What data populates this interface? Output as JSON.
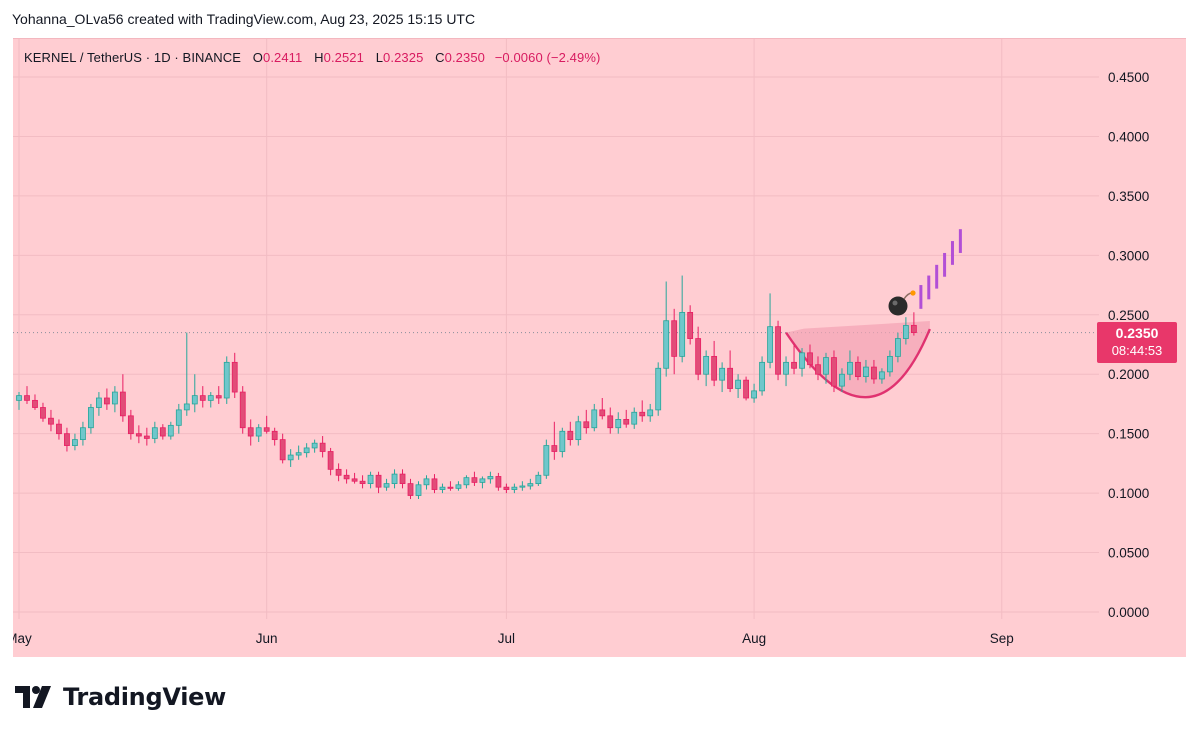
{
  "credit": "Yohanna_OLva56 created with TradingView.com, Aug 23, 2025 15:15 UTC",
  "brand": {
    "name": "TradingView",
    "logo_icon": "tradingview-logo-icon"
  },
  "colors": {
    "background": "#ffcdd2",
    "up": "#26a69a",
    "up_fill": "#6fc7cb",
    "down": "#e91e63",
    "down_fill": "#e14d78",
    "projection": "#b24fd6",
    "cup": "#e03270",
    "badge": "#e8376a"
  },
  "legend": {
    "symbol": "KERNEL / TetherUS · 1D · BINANCE",
    "o_label": "O",
    "o": "0.2411",
    "h_label": "H",
    "h": "0.2521",
    "l_label": "L",
    "l": "0.2325",
    "c_label": "C",
    "c": "0.2350",
    "change": "−0.0060 (−2.49%)"
  },
  "price_badge": {
    "price": "0.2350",
    "countdown": "08:44:53"
  },
  "annotation": {
    "icon": "bomb-icon"
  },
  "chart_data": {
    "type": "candlestick",
    "title": "KERNEL / TetherUS · 1D · BINANCE",
    "x_axis": {
      "ticks": [
        {
          "label": "May",
          "date": "2025-05-01"
        },
        {
          "label": "Jun",
          "date": "2025-06-01"
        },
        {
          "label": "Jul",
          "date": "2025-07-01"
        },
        {
          "label": "Aug",
          "date": "2025-08-01"
        },
        {
          "label": "Sep",
          "date": "2025-09-01"
        }
      ],
      "range": [
        "2025-05-01",
        "2025-09-13"
      ]
    },
    "y_axis": {
      "ticks": [
        "0.4500",
        "0.4000",
        "0.3500",
        "0.3000",
        "0.2500",
        "0.2000",
        "0.1500",
        "0.1000",
        "0.0500",
        "0.0000"
      ],
      "range": [
        0.0,
        0.48
      ],
      "position": "right"
    },
    "grid": true,
    "last_price": 0.235,
    "first_date": "2025-05-01",
    "candles": [
      [
        0.178,
        0.185,
        0.17,
        0.182
      ],
      [
        0.182,
        0.19,
        0.175,
        0.178
      ],
      [
        0.178,
        0.183,
        0.17,
        0.172
      ],
      [
        0.172,
        0.176,
        0.16,
        0.163
      ],
      [
        0.163,
        0.17,
        0.152,
        0.158
      ],
      [
        0.158,
        0.162,
        0.145,
        0.15
      ],
      [
        0.15,
        0.155,
        0.135,
        0.14
      ],
      [
        0.14,
        0.15,
        0.136,
        0.145
      ],
      [
        0.145,
        0.16,
        0.14,
        0.155
      ],
      [
        0.155,
        0.175,
        0.15,
        0.172
      ],
      [
        0.172,
        0.185,
        0.165,
        0.18
      ],
      [
        0.18,
        0.188,
        0.17,
        0.175
      ],
      [
        0.175,
        0.19,
        0.168,
        0.185
      ],
      [
        0.185,
        0.2,
        0.16,
        0.165
      ],
      [
        0.165,
        0.17,
        0.145,
        0.15
      ],
      [
        0.15,
        0.157,
        0.142,
        0.148
      ],
      [
        0.148,
        0.155,
        0.14,
        0.146
      ],
      [
        0.146,
        0.16,
        0.142,
        0.155
      ],
      [
        0.155,
        0.158,
        0.145,
        0.148
      ],
      [
        0.148,
        0.16,
        0.145,
        0.157
      ],
      [
        0.157,
        0.175,
        0.15,
        0.17
      ],
      [
        0.17,
        0.235,
        0.165,
        0.175
      ],
      [
        0.175,
        0.2,
        0.168,
        0.182
      ],
      [
        0.182,
        0.19,
        0.172,
        0.178
      ],
      [
        0.178,
        0.185,
        0.172,
        0.182
      ],
      [
        0.182,
        0.19,
        0.175,
        0.18
      ],
      [
        0.18,
        0.215,
        0.175,
        0.21
      ],
      [
        0.21,
        0.218,
        0.18,
        0.185
      ],
      [
        0.185,
        0.19,
        0.15,
        0.155
      ],
      [
        0.155,
        0.162,
        0.14,
        0.148
      ],
      [
        0.148,
        0.158,
        0.143,
        0.155
      ],
      [
        0.155,
        0.165,
        0.15,
        0.152
      ],
      [
        0.152,
        0.155,
        0.14,
        0.145
      ],
      [
        0.145,
        0.15,
        0.125,
        0.128
      ],
      [
        0.128,
        0.137,
        0.122,
        0.132
      ],
      [
        0.132,
        0.14,
        0.128,
        0.134
      ],
      [
        0.134,
        0.142,
        0.13,
        0.138
      ],
      [
        0.138,
        0.145,
        0.134,
        0.142
      ],
      [
        0.142,
        0.148,
        0.13,
        0.135
      ],
      [
        0.135,
        0.138,
        0.115,
        0.12
      ],
      [
        0.12,
        0.125,
        0.11,
        0.115
      ],
      [
        0.115,
        0.12,
        0.108,
        0.112
      ],
      [
        0.112,
        0.117,
        0.108,
        0.11
      ],
      [
        0.11,
        0.115,
        0.104,
        0.108
      ],
      [
        0.108,
        0.118,
        0.104,
        0.115
      ],
      [
        0.115,
        0.118,
        0.1,
        0.105
      ],
      [
        0.105,
        0.112,
        0.102,
        0.108
      ],
      [
        0.108,
        0.12,
        0.104,
        0.116
      ],
      [
        0.116,
        0.12,
        0.104,
        0.108
      ],
      [
        0.108,
        0.112,
        0.095,
        0.098
      ],
      [
        0.098,
        0.11,
        0.095,
        0.107
      ],
      [
        0.107,
        0.115,
        0.103,
        0.112
      ],
      [
        0.112,
        0.116,
        0.1,
        0.103
      ],
      [
        0.103,
        0.108,
        0.1,
        0.105
      ],
      [
        0.105,
        0.11,
        0.102,
        0.104
      ],
      [
        0.104,
        0.11,
        0.102,
        0.107
      ],
      [
        0.107,
        0.115,
        0.104,
        0.113
      ],
      [
        0.113,
        0.118,
        0.106,
        0.109
      ],
      [
        0.109,
        0.114,
        0.104,
        0.112
      ],
      [
        0.112,
        0.118,
        0.108,
        0.114
      ],
      [
        0.114,
        0.117,
        0.102,
        0.105
      ],
      [
        0.105,
        0.108,
        0.1,
        0.103
      ],
      [
        0.103,
        0.108,
        0.1,
        0.105
      ],
      [
        0.105,
        0.11,
        0.102,
        0.106
      ],
      [
        0.106,
        0.112,
        0.103,
        0.108
      ],
      [
        0.108,
        0.118,
        0.106,
        0.115
      ],
      [
        0.115,
        0.145,
        0.112,
        0.14
      ],
      [
        0.14,
        0.16,
        0.128,
        0.135
      ],
      [
        0.135,
        0.155,
        0.13,
        0.152
      ],
      [
        0.152,
        0.16,
        0.14,
        0.145
      ],
      [
        0.145,
        0.165,
        0.14,
        0.16
      ],
      [
        0.16,
        0.17,
        0.15,
        0.155
      ],
      [
        0.155,
        0.175,
        0.152,
        0.17
      ],
      [
        0.17,
        0.18,
        0.162,
        0.165
      ],
      [
        0.165,
        0.172,
        0.15,
        0.155
      ],
      [
        0.155,
        0.168,
        0.15,
        0.162
      ],
      [
        0.162,
        0.17,
        0.155,
        0.158
      ],
      [
        0.158,
        0.172,
        0.154,
        0.168
      ],
      [
        0.168,
        0.178,
        0.16,
        0.165
      ],
      [
        0.165,
        0.175,
        0.16,
        0.17
      ],
      [
        0.17,
        0.21,
        0.165,
        0.205
      ],
      [
        0.205,
        0.278,
        0.198,
        0.245
      ],
      [
        0.245,
        0.255,
        0.2,
        0.215
      ],
      [
        0.215,
        0.283,
        0.21,
        0.252
      ],
      [
        0.252,
        0.258,
        0.225,
        0.23
      ],
      [
        0.23,
        0.24,
        0.195,
        0.2
      ],
      [
        0.2,
        0.22,
        0.19,
        0.215
      ],
      [
        0.215,
        0.228,
        0.19,
        0.195
      ],
      [
        0.195,
        0.21,
        0.185,
        0.205
      ],
      [
        0.205,
        0.22,
        0.185,
        0.188
      ],
      [
        0.188,
        0.2,
        0.18,
        0.195
      ],
      [
        0.195,
        0.198,
        0.178,
        0.18
      ],
      [
        0.18,
        0.192,
        0.176,
        0.186
      ],
      [
        0.186,
        0.215,
        0.182,
        0.21
      ],
      [
        0.21,
        0.268,
        0.205,
        0.24
      ],
      [
        0.24,
        0.245,
        0.195,
        0.2
      ],
      [
        0.2,
        0.215,
        0.19,
        0.21
      ],
      [
        0.21,
        0.225,
        0.2,
        0.205
      ],
      [
        0.205,
        0.222,
        0.198,
        0.218
      ],
      [
        0.218,
        0.225,
        0.205,
        0.208
      ],
      [
        0.208,
        0.215,
        0.195,
        0.2
      ],
      [
        0.2,
        0.218,
        0.192,
        0.214
      ],
      [
        0.214,
        0.22,
        0.185,
        0.19
      ],
      [
        0.19,
        0.205,
        0.185,
        0.2
      ],
      [
        0.2,
        0.22,
        0.195,
        0.21
      ],
      [
        0.21,
        0.215,
        0.195,
        0.198
      ],
      [
        0.198,
        0.212,
        0.193,
        0.206
      ],
      [
        0.206,
        0.212,
        0.192,
        0.196
      ],
      [
        0.196,
        0.205,
        0.192,
        0.202
      ],
      [
        0.202,
        0.22,
        0.198,
        0.215
      ],
      [
        0.215,
        0.235,
        0.21,
        0.23
      ],
      [
        0.23,
        0.248,
        0.225,
        0.241
      ],
      [
        0.2411,
        0.2521,
        0.2325,
        0.235
      ]
    ],
    "projection_bars": [
      [
        0.255,
        0.275
      ],
      [
        0.263,
        0.283
      ],
      [
        0.272,
        0.292
      ],
      [
        0.282,
        0.302
      ],
      [
        0.292,
        0.312
      ],
      [
        0.302,
        0.322
      ]
    ],
    "cup_pattern": {
      "start": [
        "2025-08-05",
        0.235
      ],
      "bottom": [
        "2025-08-16",
        0.18
      ],
      "end": [
        "2025-08-23",
        0.238
      ]
    }
  }
}
